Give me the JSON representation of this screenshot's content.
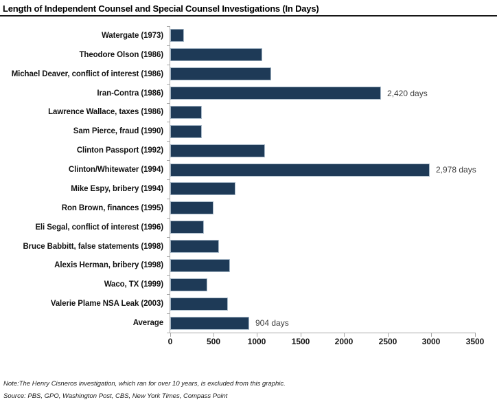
{
  "title": "Length of Independent Counsel and Special Counsel Investigations (In Days)",
  "chart_data": {
    "type": "bar",
    "orientation": "horizontal",
    "title": "Length of Independent Counsel and Special Counsel Investigations (In Days)",
    "categories": [
      "Watergate (1973)",
      "Theodore Olson (1986)",
      "Michael Deaver, conflict of interest (1986)",
      "Iran-Contra (1986)",
      "Lawrence Wallace, taxes (1986)",
      "Sam Pierce, fraud (1990)",
      "Clinton Passport (1992)",
      "Clinton/Whitewater (1994)",
      "Mike Espy, bribery (1994)",
      "Ron Brown, finances (1995)",
      "Eli Segal, conflict of interest (1996)",
      "Bruce Babbitt, false statements (1998)",
      "Alexis Herman, bribery (1998)",
      "Waco, TX (1999)",
      "Valerie Plame NSA Leak (2003)",
      "Average"
    ],
    "values": [
      160,
      1055,
      1160,
      2420,
      365,
      365,
      1085,
      2978,
      750,
      500,
      390,
      560,
      685,
      425,
      665,
      904
    ],
    "value_labels": [
      "",
      "",
      "",
      "2,420 days",
      "",
      "",
      "",
      "2,978 days",
      "",
      "",
      "",
      "",
      "",
      "",
      "",
      "904 days"
    ],
    "xlabel": "",
    "ylabel": "",
    "xlim": [
      0,
      3500
    ],
    "xticks": [
      0,
      500,
      1000,
      1500,
      2000,
      2500,
      3000,
      3500
    ],
    "grid": false,
    "legend": false,
    "bar_color": "#1e3a57",
    "axis_color": "#a6a6a6"
  },
  "footer": {
    "note": "Note:The Henry Cisneros investigation, which ran for over 10 years, is excluded from this graphic.",
    "source": "Source: PBS, GPO, Washington Post, CBS, New York Times, Compass Point"
  }
}
